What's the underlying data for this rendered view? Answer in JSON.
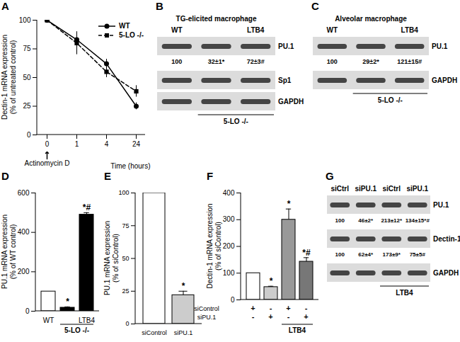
{
  "chart_data": [
    {
      "panel": "A",
      "type": "line",
      "x_label": "Time (hours)",
      "y_label": "Dectin-1 mRNA expression\n(% of untreated control)",
      "categories": [
        "0",
        "1",
        "4",
        "24"
      ],
      "series": [
        {
          "name": "WT",
          "color": "#000000",
          "marker": "circle",
          "line_style": "solid",
          "values": [
            100,
            83,
            62,
            25
          ],
          "errors": [
            0,
            3,
            4,
            3
          ]
        },
        {
          "name": "5-LO -/-",
          "color": "#000000",
          "marker": "square",
          "line_style": "dashed",
          "values": [
            100,
            80,
            55,
            38
          ],
          "errors": [
            0,
            10,
            5,
            5
          ]
        }
      ],
      "ylim": [
        0,
        100
      ],
      "yticks": [
        0,
        25,
        50,
        75,
        100
      ],
      "annotation": "Actinomycin D",
      "legend": "top-right"
    },
    {
      "panel": "D",
      "type": "bar",
      "y_label": "PU.1 mRNA expression\n(% of WT control)",
      "categories": [
        "WT",
        null,
        "LTB4"
      ],
      "values": [
        100,
        18,
        490
      ],
      "errors": [
        0,
        4,
        10
      ],
      "colors": [
        "#ffffff",
        "#000000",
        "#000000"
      ],
      "annotations": [
        null,
        "*",
        "*#"
      ],
      "group_label": {
        "text": "5-LO -/-",
        "from": 1,
        "to": 2
      },
      "ylim": [
        0,
        600
      ],
      "yticks": [
        0,
        200,
        400,
        600
      ]
    },
    {
      "panel": "E",
      "type": "bar",
      "y_label": "PU.1 mRNA expression\n(% of siControl)",
      "categories": [
        "siControl",
        "siPU.1"
      ],
      "values": [
        100,
        22
      ],
      "errors": [
        0,
        3
      ],
      "colors": [
        "#ffffff",
        "#cccccc"
      ],
      "annotations": [
        null,
        "*"
      ],
      "ylim": [
        0,
        100
      ],
      "yticks": [
        0,
        25,
        50,
        75,
        100
      ]
    },
    {
      "panel": "F",
      "type": "bar",
      "y_label": "Dectin-1 mRNA expression\n(% of siControl)",
      "categories": [
        null,
        null,
        null,
        null
      ],
      "values": [
        100,
        48,
        300,
        143
      ],
      "errors": [
        0,
        3,
        40,
        15
      ],
      "colors": [
        "#ffffff",
        "#cccccc",
        "#999999",
        "#777777"
      ],
      "annotations": [
        null,
        "*",
        "*",
        "*#"
      ],
      "conditions": [
        {
          "name": "siControl",
          "values": [
            "+",
            "-",
            "+",
            "-"
          ]
        },
        {
          "name": "siPU.1",
          "values": [
            "-",
            "+",
            "-",
            "+"
          ]
        }
      ],
      "group_label": {
        "text": "LTB4",
        "from": 2,
        "to": 3
      },
      "ylim": [
        0,
        400
      ],
      "yticks": [
        0,
        100,
        200,
        300,
        400
      ]
    }
  ],
  "blots": [
    {
      "panel": "B",
      "title": "TG-elicited macrophage",
      "lanes": [
        "WT",
        null,
        "LTB4"
      ],
      "rows": [
        {
          "label": "PU.1",
          "quant": [
            "100",
            "32±1*",
            "72±3#"
          ]
        },
        {
          "label": "Sp1"
        },
        {
          "label": "GAPDH"
        }
      ],
      "group_label": {
        "text": "5-LO -/-",
        "from": 1,
        "to": 2
      }
    },
    {
      "panel": "C",
      "title": "Alveolar macrophage",
      "lanes": [
        "WT",
        null,
        "LTB4"
      ],
      "rows": [
        {
          "label": "PU.1",
          "quant": [
            "100",
            "29±2*",
            "121±15#"
          ]
        },
        {
          "label": "GAPDH"
        }
      ],
      "group_label": {
        "text": "5-LO -/-",
        "from": 1,
        "to": 2
      }
    },
    {
      "panel": "G",
      "lanes": [
        "siCtrl",
        "siPU.1",
        "siCtrl",
        "siPU.1"
      ],
      "rows": [
        {
          "label": "PU.1",
          "quant": [
            "100",
            "46±2*",
            "213±12*",
            "134±15*#"
          ]
        },
        {
          "label": "Dectin-1",
          "quant": [
            "100",
            "62±4*",
            "173±9*",
            "75±5#"
          ]
        },
        {
          "label": "GAPDH"
        }
      ],
      "group_label": {
        "text": "LTB4",
        "from": 2,
        "to": 3
      }
    }
  ]
}
